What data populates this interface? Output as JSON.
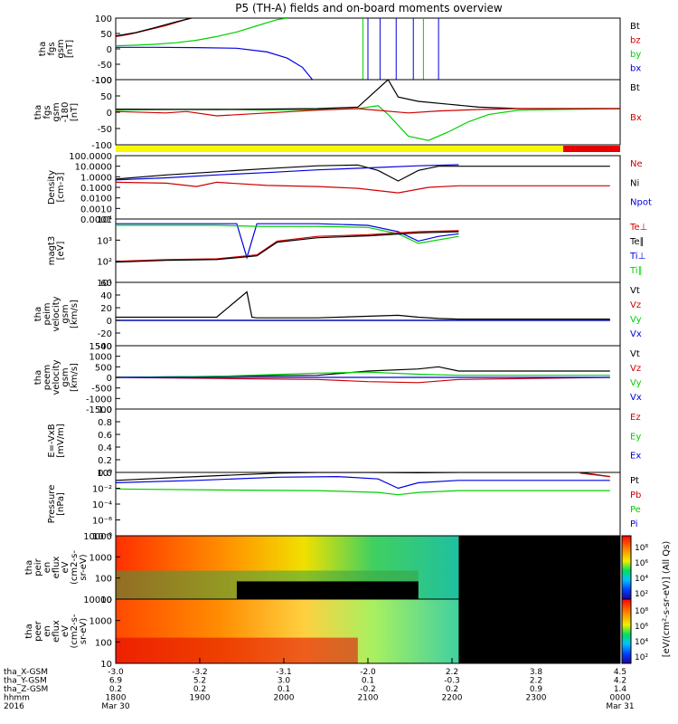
{
  "title": "P5 (TH-A) fields and on-board moments overview",
  "colors": {
    "black": "#000000",
    "red": "#d00000",
    "green": "#00d000",
    "blue": "#0000e0",
    "yellow": "#f8f800",
    "bar_red": "#e80000"
  },
  "chart_data": [
    {
      "type": "line",
      "panel": "fgs",
      "ylabel": [
        "tha",
        "fgs",
        "gsm",
        "[nT]"
      ],
      "ylim": [
        -100,
        100
      ],
      "yticks": [
        "100",
        "50",
        "0",
        "-50",
        "-100"
      ],
      "legend": [
        {
          "name": "Bt",
          "color": "black"
        },
        {
          "name": "bz",
          "color": "red"
        },
        {
          "name": "by",
          "color": "green"
        },
        {
          "name": "bx",
          "color": "blue"
        }
      ],
      "series": [
        {
          "name": "bz",
          "color": "red",
          "x": [
            0.0,
            0.1,
            0.2,
            0.3,
            0.4,
            0.5,
            0.6,
            0.7,
            0.75
          ],
          "y": [
            40,
            45,
            52,
            60,
            68,
            76,
            86,
            96,
            102
          ]
        },
        {
          "name": "Bt",
          "color": "black",
          "x": [
            0.0,
            0.2,
            0.4,
            0.6,
            0.75
          ],
          "y": [
            42,
            53,
            70,
            88,
            103
          ]
        },
        {
          "name": "by",
          "color": "green",
          "x": [
            0.0,
            0.2,
            0.4,
            0.6,
            0.8,
            1.0,
            1.2,
            1.4,
            1.6,
            1.7
          ],
          "y": [
            10,
            12,
            15,
            20,
            28,
            40,
            55,
            75,
            95,
            103
          ]
        },
        {
          "name": "bx",
          "color": "blue",
          "x": [
            0.0,
            0.4,
            0.8,
            1.2,
            1.5,
            1.7,
            1.85,
            1.95
          ],
          "y": [
            5,
            5,
            4,
            2,
            -10,
            -30,
            -60,
            -100
          ]
        }
      ]
    },
    {
      "type": "line",
      "panel": "fgs_dsl",
      "ylabel": [
        "tha",
        "fgs",
        "gsm",
        "-180",
        "[nT]"
      ],
      "ylim": [
        -125,
        100
      ],
      "yticks": [
        "100",
        "50",
        "0",
        "-50",
        "-100"
      ],
      "legend": [
        {
          "name": "Bt",
          "color": "black"
        },
        {
          "name": "Bx",
          "color": "red"
        }
      ],
      "series": [
        {
          "name": "green",
          "color": "green",
          "x": [
            0.0,
            0.5,
            1.0,
            1.5,
            2.0,
            2.4,
            2.6,
            2.7,
            2.9,
            3.1,
            3.3,
            3.5,
            3.7,
            4.0,
            5.0
          ],
          "y": [
            -5,
            -3,
            -2,
            -5,
            -3,
            0,
            10,
            -20,
            -95,
            -110,
            -80,
            -45,
            -20,
            -5,
            0
          ]
        },
        {
          "name": "black",
          "color": "black",
          "x": [
            0.0,
            1.0,
            2.0,
            2.4,
            2.7,
            2.8,
            3.0,
            3.3,
            3.6,
            4.0,
            5.0
          ],
          "y": [
            -2,
            -3,
            0,
            5,
            100,
            40,
            25,
            15,
            5,
            0,
            0
          ]
        },
        {
          "name": "red",
          "color": "red",
          "x": [
            0.0,
            0.5,
            0.7,
            1.0,
            1.5,
            2.0,
            2.4,
            2.9,
            3.2,
            3.6,
            4.0,
            5.0
          ],
          "y": [
            -10,
            -15,
            -10,
            -25,
            -15,
            -5,
            0,
            -15,
            -8,
            -3,
            0,
            0
          ]
        }
      ]
    },
    {
      "type": "line",
      "panel": "density",
      "scale": "log",
      "ylabel": [
        "Density",
        "[cm-3]"
      ],
      "ylim": [
        0.0001,
        100
      ],
      "yticks": [
        "100.0000",
        "10.0000",
        "1.0000",
        "0.1000",
        "0.0100",
        "0.0010",
        "0.0001"
      ],
      "legend": [
        {
          "name": "Ne",
          "color": "red"
        },
        {
          "name": "Ni",
          "color": "black"
        },
        {
          "name": "Npot",
          "color": "blue"
        }
      ],
      "series": [
        {
          "name": "Ni",
          "color": "black",
          "x": [
            0.0,
            0.5,
            1.0,
            1.5,
            2.0,
            2.4,
            2.6,
            2.8,
            3.0,
            3.2,
            3.4,
            4.9
          ],
          "y": [
            0.6,
            1.5,
            3,
            6,
            11,
            13,
            4,
            0.4,
            4,
            10,
            10,
            10
          ]
        },
        {
          "name": "Npot",
          "color": "blue",
          "x": [
            0.0,
            0.5,
            1.0,
            1.5,
            2.0,
            2.5,
            3.0,
            3.4
          ],
          "y": [
            0.5,
            0.8,
            1.5,
            2.5,
            4.5,
            7,
            11,
            14
          ]
        },
        {
          "name": "Ne",
          "color": "red",
          "x": [
            0.0,
            0.5,
            0.8,
            1.0,
            1.5,
            2.0,
            2.4,
            2.8,
            3.1,
            3.4,
            4.9
          ],
          "y": [
            0.3,
            0.25,
            0.12,
            0.3,
            0.15,
            0.12,
            0.08,
            0.03,
            0.1,
            0.14,
            0.14
          ]
        }
      ]
    },
    {
      "type": "line",
      "panel": "temperature",
      "scale": "log",
      "ylabel": [
        "magt3",
        "[eV]"
      ],
      "ylim": [
        10,
        10000
      ],
      "yticks": [
        "10⁴",
        "10³",
        "10²",
        "10¹"
      ],
      "legend": [
        {
          "name": "Te⊥",
          "color": "red"
        },
        {
          "name": "Te∥",
          "color": "black"
        },
        {
          "name": "Ti⊥",
          "color": "blue"
        },
        {
          "name": "Ti∥",
          "color": "green"
        }
      ],
      "series": [
        {
          "name": "Ti⊥",
          "color": "blue",
          "x": [
            0.0,
            1.0,
            1.2,
            1.3,
            1.4,
            2.0,
            2.5,
            2.8,
            3.0,
            3.2,
            3.4
          ],
          "y": [
            6000,
            6000,
            6000,
            150,
            6000,
            6000,
            5000,
            2500,
            900,
            1500,
            2000
          ]
        },
        {
          "name": "Ti∥",
          "color": "green",
          "x": [
            0.0,
            1.0,
            1.4,
            2.0,
            2.5,
            2.8,
            3.0,
            3.4
          ],
          "y": [
            5000,
            5000,
            4500,
            4500,
            4000,
            2000,
            700,
            1500
          ]
        },
        {
          "name": "Te⊥",
          "color": "red",
          "x": [
            0.0,
            0.5,
            1.0,
            1.4,
            1.6,
            2.0,
            2.5,
            3.0,
            3.4
          ],
          "y": [
            100,
            120,
            130,
            200,
            900,
            1500,
            1800,
            2500,
            2800
          ]
        },
        {
          "name": "Te∥",
          "color": "black",
          "x": [
            0.0,
            0.5,
            1.0,
            1.4,
            1.6,
            2.0,
            2.5,
            3.0,
            3.4
          ],
          "y": [
            90,
            110,
            120,
            180,
            800,
            1300,
            1600,
            2200,
            2500
          ]
        }
      ]
    },
    {
      "type": "line",
      "panel": "peim_velocity",
      "ylabel": [
        "tha",
        "peim",
        "velocity",
        "gsm",
        "[km/s]"
      ],
      "ylim": [
        -40,
        60
      ],
      "yticks": [
        "60",
        "40",
        "20",
        "0",
        "-20",
        "-40"
      ],
      "legend": [
        {
          "name": "Vt",
          "color": "black"
        },
        {
          "name": "Vz",
          "color": "red"
        },
        {
          "name": "Vy",
          "color": "green"
        },
        {
          "name": "Vx",
          "color": "blue"
        }
      ],
      "series": [
        {
          "name": "Vt",
          "color": "black",
          "x": [
            0.0,
            1.0,
            1.3,
            1.35,
            1.4,
            2.0,
            2.8,
            3.0,
            3.2,
            3.4,
            4.9
          ],
          "y": [
            5,
            5,
            45,
            5,
            4,
            4,
            8,
            5,
            3,
            2,
            2
          ]
        },
        {
          "name": "Vz",
          "color": "red",
          "x": [
            0.0,
            1.0,
            2.0,
            2.8,
            3.0,
            3.4,
            4.9
          ],
          "y": [
            0,
            0,
            0,
            0,
            0,
            0,
            0
          ]
        },
        {
          "name": "Vy",
          "color": "green",
          "x": [
            0.0,
            4.9
          ],
          "y": [
            0,
            0
          ]
        },
        {
          "name": "Vx",
          "color": "blue",
          "x": [
            0.0,
            4.9
          ],
          "y": [
            0,
            0
          ]
        }
      ]
    },
    {
      "type": "line",
      "panel": "peem_velocity",
      "ylabel": [
        "tha",
        "peem",
        "velocity",
        "gsm",
        "[km/s]"
      ],
      "ylim": [
        -1500,
        1500
      ],
      "yticks": [
        "1500",
        "1000",
        "500",
        "0",
        "-500",
        "-1000",
        "-1500"
      ],
      "legend": [
        {
          "name": "Vt",
          "color": "black"
        },
        {
          "name": "Vz",
          "color": "red"
        },
        {
          "name": "Vy",
          "color": "green"
        },
        {
          "name": "Vx",
          "color": "blue"
        }
      ],
      "series": [
        {
          "name": "Vt",
          "color": "black",
          "x": [
            0.0,
            1.0,
            2.0,
            2.5,
            3.0,
            3.2,
            3.4,
            4.9
          ],
          "y": [
            0,
            50,
            100,
            300,
            400,
            500,
            300,
            300
          ]
        },
        {
          "name": "Vz",
          "color": "red",
          "x": [
            0.0,
            1.0,
            2.0,
            2.5,
            3.0,
            3.4,
            4.9
          ],
          "y": [
            0,
            -50,
            -100,
            -200,
            -250,
            -100,
            0
          ]
        },
        {
          "name": "Vy",
          "color": "green",
          "x": [
            0.0,
            1.0,
            2.0,
            2.5,
            3.0,
            3.4,
            4.9
          ],
          "y": [
            0,
            50,
            200,
            250,
            150,
            100,
            100
          ]
        },
        {
          "name": "Vx",
          "color": "blue",
          "x": [
            0.0,
            4.9
          ],
          "y": [
            0,
            0
          ]
        }
      ]
    },
    {
      "type": "line",
      "panel": "efield",
      "ylabel": [
        "E=-VxB",
        "[mV/m]"
      ],
      "ylim": [
        0,
        1.0
      ],
      "yticks": [
        "1.0",
        "0.8",
        "0.6",
        "0.4",
        "0.2",
        "0.0"
      ],
      "legend": [
        {
          "name": "Ez",
          "color": "red"
        },
        {
          "name": "Ey",
          "color": "green"
        },
        {
          "name": "Ex",
          "color": "blue"
        }
      ],
      "series": []
    },
    {
      "type": "line",
      "panel": "pressure",
      "scale": "log",
      "ylabel": [
        "Pressure",
        "[nPa]"
      ],
      "ylim": [
        1e-08,
        1
      ],
      "yticks": [
        "10⁰",
        "10⁻²",
        "10⁻⁴",
        "10⁻⁶",
        "10⁻⁸"
      ],
      "legend": [
        {
          "name": "Pt",
          "color": "black"
        },
        {
          "name": "Pb",
          "color": "red"
        },
        {
          "name": "Pe",
          "color": "green"
        },
        {
          "name": "Pi",
          "color": "blue"
        }
      ],
      "series": [
        {
          "name": "Pt",
          "color": "black",
          "x": [
            0.0,
            0.8,
            1.6,
            2.0,
            2.5,
            3.0,
            3.4,
            4.6,
            4.9
          ],
          "y": [
            0.1,
            0.3,
            0.8,
            1.5,
            1.0,
            0.9,
            1.0,
            1.0,
            0.3
          ]
        },
        {
          "name": "Pb",
          "color": "red",
          "x": [
            4.6,
            4.9
          ],
          "y": [
            0.8,
            0.3
          ]
        },
        {
          "name": "Pi",
          "color": "blue",
          "x": [
            0.0,
            0.8,
            1.6,
            2.2,
            2.6,
            2.8,
            3.0,
            3.4,
            4.9
          ],
          "y": [
            0.05,
            0.1,
            0.25,
            0.3,
            0.15,
            0.01,
            0.05,
            0.1,
            0.1
          ]
        },
        {
          "name": "Pe",
          "color": "green",
          "x": [
            0.0,
            1.0,
            2.0,
            2.6,
            2.8,
            3.0,
            3.4,
            4.9
          ],
          "y": [
            0.008,
            0.006,
            0.005,
            0.003,
            0.0015,
            0.003,
            0.005,
            0.005
          ]
        }
      ]
    },
    {
      "type": "heatmap",
      "panel": "peir",
      "ylabel": [
        "tha",
        "peir",
        "en",
        "eflux",
        "eV",
        "(cm2-s-",
        "sr-eV)"
      ],
      "yticks": [
        "10000",
        "1000",
        "100",
        "10"
      ]
    },
    {
      "type": "heatmap",
      "panel": "peer",
      "ylabel": [
        "tha",
        "peer",
        "en",
        "eflux",
        "eV",
        "(cm2-s-",
        "sr-eV)"
      ],
      "yticks": [
        "10000",
        "1000",
        "100",
        "10"
      ]
    }
  ],
  "colorbar": {
    "label": "[eV/(cm²-s-sr-eV)] (All Qs)",
    "ticks_top": [
      "10⁸",
      "10⁶",
      "10⁴",
      "10²"
    ],
    "ticks_bottom": [
      "10⁸",
      "10⁶",
      "10⁴",
      "10²"
    ]
  },
  "time_axis": {
    "rows": [
      {
        "label": "tha_X-GSM",
        "values": [
          "-3.0",
          "-3.2",
          "-3.1",
          "-2.0",
          "2.2",
          "3.8",
          "4.5"
        ]
      },
      {
        "label": "tha_Y-GSM",
        "values": [
          "6.9",
          "5.2",
          "3.0",
          "0.1",
          "-0.3",
          "2.2",
          "4.2"
        ]
      },
      {
        "label": "tha_Z-GSM",
        "values": [
          "0.2",
          "0.2",
          "0.1",
          "-0.2",
          "0.2",
          "0.9",
          "1.4"
        ]
      },
      {
        "label": "hhmm",
        "values": [
          "1800",
          "1900",
          "2000",
          "2100",
          "2200",
          "2300",
          "0000"
        ]
      },
      {
        "label": "2016",
        "values": [
          "Mar 30",
          "",
          "",
          "",
          "",
          "",
          "Mar 31"
        ]
      }
    ]
  }
}
